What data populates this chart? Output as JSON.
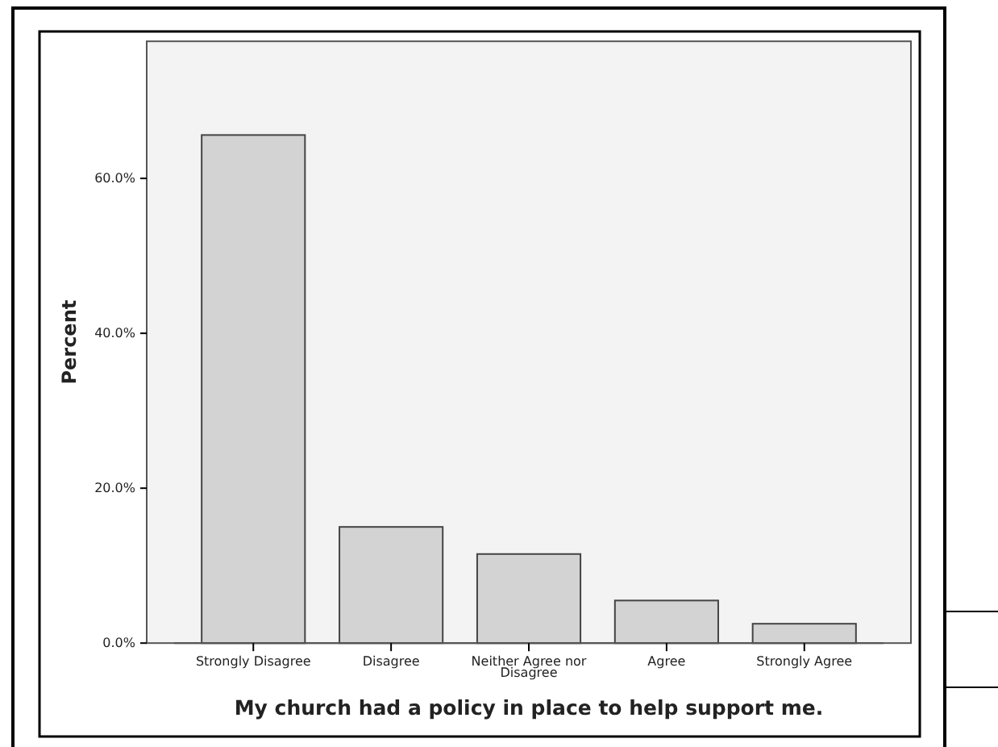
{
  "chart_data": {
    "type": "bar",
    "xlabel": "My church had a policy in place to help support me.",
    "ylabel": "Percent",
    "categories": [
      "Strongly Disagree",
      "Disagree",
      "Neither Agree nor Disagree",
      "Agree",
      "Strongly Agree"
    ],
    "values": [
      65.6,
      15.0,
      11.5,
      5.5,
      2.5
    ],
    "color": "#d3d3d3",
    "ylim": [
      0,
      77.7
    ],
    "yticks": [
      {
        "value": 0,
        "label": "0.0%"
      },
      {
        "value": 20,
        "label": "20.0%"
      },
      {
        "value": 40,
        "label": "40.0%"
      },
      {
        "value": 60,
        "label": "60.0%"
      }
    ],
    "grid": false
  }
}
